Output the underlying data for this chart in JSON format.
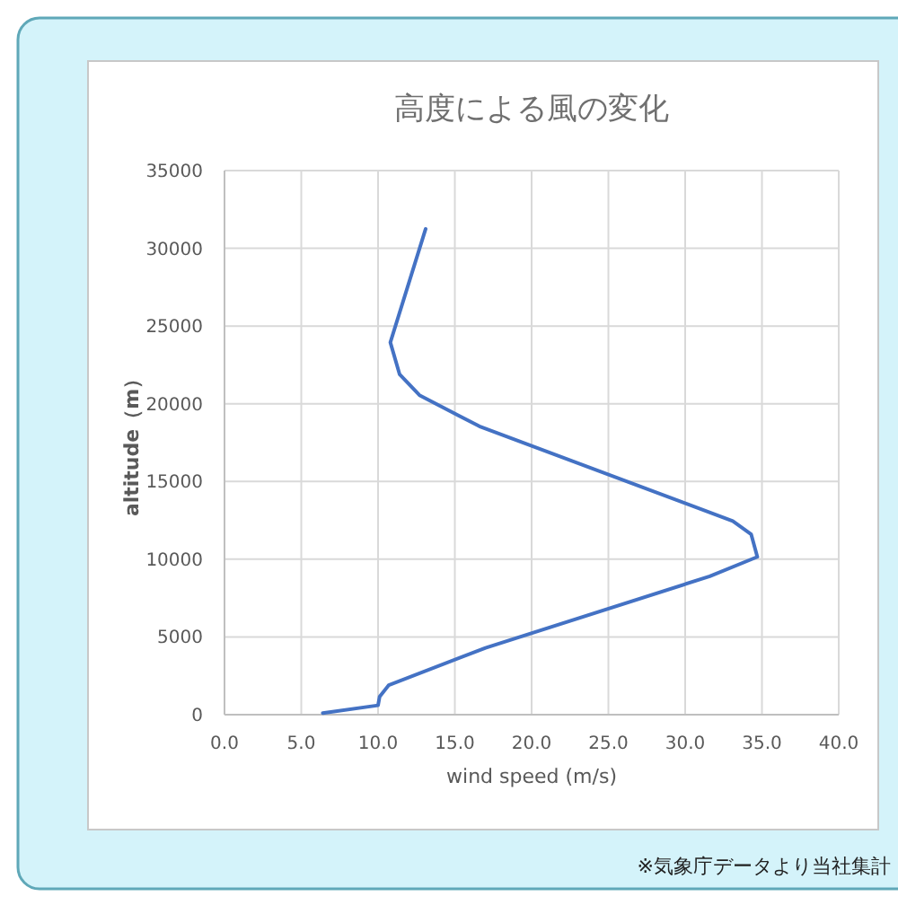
{
  "chart_data": {
    "type": "line",
    "title": "高度による風の変化",
    "xlabel": "wind speed (m/s)",
    "ylabel": "altitude（m）",
    "x": [
      6.4,
      10.0,
      10.1,
      10.7,
      17.0,
      31.6,
      34.7,
      34.3,
      33.1,
      16.6,
      12.7,
      11.4,
      10.8,
      13.1
    ],
    "series": [
      {
        "color": "#4472c4",
        "values": [
          100,
          600,
          1150,
          1900,
          4300,
          8900,
          10150,
          11600,
          12450,
          18550,
          20550,
          21900,
          23950,
          31250
        ]
      }
    ],
    "xlim": [
      0,
      40
    ],
    "ylim": [
      0,
      35000
    ],
    "xticks": [
      {
        "value": 0,
        "label": "0.0"
      },
      {
        "value": 5,
        "label": "5.0"
      },
      {
        "value": 10,
        "label": "10.0"
      },
      {
        "value": 15,
        "label": "15.0"
      },
      {
        "value": 20,
        "label": "20.0"
      },
      {
        "value": 25,
        "label": "25.0"
      },
      {
        "value": 30,
        "label": "30.0"
      },
      {
        "value": 35,
        "label": "35.0"
      },
      {
        "value": 40,
        "label": "40.0"
      }
    ],
    "yticks": [
      0,
      5000,
      10000,
      15000,
      20000,
      25000,
      30000,
      35000
    ],
    "grid": true,
    "line_style": "solid",
    "marker": "none",
    "annotations": [
      "※気象庁データより当社集計"
    ]
  }
}
